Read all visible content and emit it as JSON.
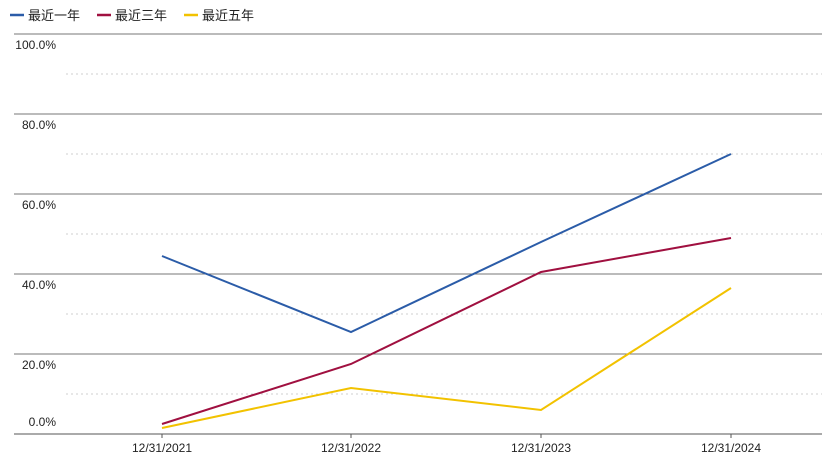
{
  "chart_data": {
    "type": "line",
    "x": [
      "12/31/2021",
      "12/31/2022",
      "12/31/2023",
      "12/31/2024"
    ],
    "series": [
      {
        "name": "最近一年",
        "color": "#2b5ca8",
        "values": [
          44.5,
          25.5,
          48,
          70
        ]
      },
      {
        "name": "最近三年",
        "color": "#a01040",
        "values": [
          2.5,
          17.5,
          40.5,
          49
        ]
      },
      {
        "name": "最近五年",
        "color": "#f2c200",
        "values": [
          1.5,
          11.5,
          6,
          36.5
        ]
      }
    ],
    "yticks": [
      "0.0%",
      "20.0%",
      "40.0%",
      "60.0%",
      "80.0%",
      "100.0%"
    ],
    "ylim": [
      0,
      100
    ],
    "legend_position": "top-left",
    "grid": "dotted horizontal"
  }
}
